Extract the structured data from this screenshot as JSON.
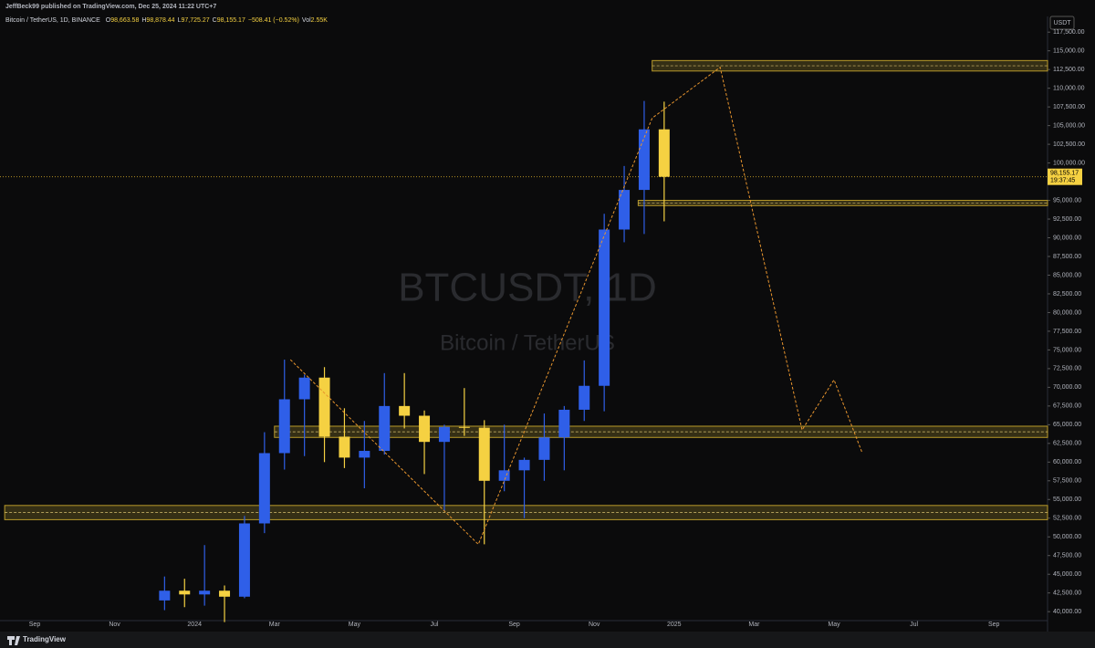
{
  "header": {
    "publisher": "JeffBeck99 published on TradingView.com, Dec 25, 2024 11:22 UTC+7",
    "symbol": "Bitcoin / TetherUS, 1D, BINANCE",
    "ohlc": [
      {
        "key": "O",
        "value": "98,663.58"
      },
      {
        "key": "H",
        "value": "98,878.44"
      },
      {
        "key": "L",
        "value": "97,725.27"
      },
      {
        "key": "C",
        "value": "98,155.17"
      },
      {
        "key": "",
        "value": "−508.41 (−0.52%)"
      },
      {
        "key": "Vol",
        "value": "2.55K"
      }
    ],
    "currency": "USDT",
    "watermark": "BTCUSDT, 1D",
    "watermark_sub": "Bitcoin / TetherUS",
    "brand": "TradingView"
  },
  "chart_data": {
    "type": "candlestick",
    "categories": [
      "Sep",
      null,
      null,
      null,
      "Nov",
      null,
      null,
      null,
      "2024",
      null,
      null,
      null,
      "Mar",
      null,
      null,
      null,
      "May",
      null,
      null,
      null,
      "Jul",
      null,
      null,
      null,
      "Sep",
      null,
      null,
      null,
      "Nov",
      null,
      null,
      null,
      "2025",
      null,
      null,
      null,
      "Mar",
      null,
      null,
      null,
      "May",
      null,
      null,
      null,
      "Jul",
      null,
      null,
      null,
      "Sep"
    ],
    "open": [
      null,
      null,
      null,
      null,
      null,
      null,
      41500,
      42800,
      42300,
      42800,
      42000,
      51800,
      61200,
      68400,
      71300,
      63400,
      60600,
      61500,
      67500,
      66200,
      62700,
      64700,
      64600,
      57500,
      58900,
      60300,
      63300,
      67000,
      70200,
      91100,
      96400,
      104500,
      null,
      null,
      null,
      null,
      null,
      null,
      null,
      null,
      null,
      null,
      null,
      null,
      null,
      null,
      null,
      null,
      null
    ],
    "high": [
      null,
      null,
      null,
      null,
      null,
      null,
      44700,
      44400,
      48900,
      43500,
      52800,
      64000,
      73700,
      71700,
      72700,
      67200,
      65500,
      71900,
      71900,
      66900,
      65000,
      69900,
      65600,
      65000,
      60600,
      66500,
      67500,
      73600,
      93200,
      99600,
      108300,
      108200,
      null,
      null,
      null,
      null,
      null,
      null,
      null,
      null,
      null,
      null,
      null,
      null,
      null,
      null,
      null,
      null,
      null
    ],
    "low": [
      null,
      null,
      null,
      null,
      null,
      null,
      40200,
      40600,
      40800,
      38600,
      41800,
      50500,
      59000,
      60800,
      60000,
      59200,
      56500,
      61000,
      64500,
      58400,
      53500,
      63500,
      49000,
      56100,
      52500,
      57500,
      58900,
      65500,
      66800,
      89400,
      90500,
      92200,
      null,
      null,
      null,
      null,
      null,
      null,
      null,
      null,
      null,
      null,
      null,
      null,
      null,
      null,
      null,
      null,
      null
    ],
    "close": [
      null,
      null,
      null,
      null,
      null,
      null,
      42800,
      42300,
      42800,
      42000,
      51800,
      61200,
      68400,
      71300,
      63400,
      60600,
      61500,
      67500,
      66200,
      62700,
      64700,
      64600,
      57500,
      58900,
      60300,
      63300,
      67000,
      70200,
      91100,
      96400,
      104500,
      98155.17,
      null,
      null,
      null,
      null,
      null,
      null,
      null,
      null,
      null,
      null,
      null,
      null,
      null,
      null,
      null,
      null,
      null
    ],
    "up_color": "#2f5fe8",
    "down_color": "#f5d142",
    "zones": [
      {
        "x0": 30.9,
        "low": 112300,
        "high": 113700
      },
      {
        "x0": 30.2,
        "low": 94300,
        "high": 95000
      },
      {
        "x0": 12,
        "low": 63300,
        "high": 64800
      },
      {
        "x0": -1.5,
        "low": 52300,
        "high": 54200
      }
    ],
    "projection": {
      "x": [
        12.8,
        22.2,
        30.9,
        34.3,
        38.4,
        40.0,
        41.4
      ],
      "values": [
        73700,
        49000,
        106000,
        112800,
        64300,
        71000,
        61300
      ],
      "color": "#e8952e"
    },
    "last_price": {
      "value": 98155.17,
      "label": "98,155.17"
    },
    "countdown": "19:37:45",
    "ylim": [
      38800,
      119600
    ],
    "yticks": [
      {
        "value": 40000,
        "label": "40,000.00"
      },
      {
        "value": 42500,
        "label": "42,500.00"
      },
      {
        "value": 45000,
        "label": "45,000.00"
      },
      {
        "value": 47500,
        "label": "47,500.00"
      },
      {
        "value": 50000,
        "label": "50,000.00"
      },
      {
        "value": 52500,
        "label": "52,500.00"
      },
      {
        "value": 55000,
        "label": "55,000.00"
      },
      {
        "value": 57500,
        "label": "57,500.00"
      },
      {
        "value": 60000,
        "label": "60,000.00"
      },
      {
        "value": 62500,
        "label": "62,500.00"
      },
      {
        "value": 65000,
        "label": "65,000.00"
      },
      {
        "value": 67500,
        "label": "67,500.00"
      },
      {
        "value": 70000,
        "label": "70,000.00"
      },
      {
        "value": 72500,
        "label": "72,500.00"
      },
      {
        "value": 75000,
        "label": "75,000.00"
      },
      {
        "value": 77500,
        "label": "77,500.00"
      },
      {
        "value": 80000,
        "label": "80,000.00"
      },
      {
        "value": 82500,
        "label": "82,500.00"
      },
      {
        "value": 85000,
        "label": "85,000.00"
      },
      {
        "value": 87500,
        "label": "87,500.00"
      },
      {
        "value": 90000,
        "label": "90,000.00"
      },
      {
        "value": 92500,
        "label": "92,500.00"
      },
      {
        "value": 95000,
        "label": "95,000.00"
      },
      {
        "value": 97500,
        "label": "97,500.00"
      },
      {
        "value": 100000,
        "label": "100,000.00"
      },
      {
        "value": 102500,
        "label": "102,500.00"
      },
      {
        "value": 105000,
        "label": "105,000.00"
      },
      {
        "value": 107500,
        "label": "107,500.00"
      },
      {
        "value": 110000,
        "label": "110,000.00"
      },
      {
        "value": 112500,
        "label": "112,500.00"
      },
      {
        "value": 115000,
        "label": "115,000.00"
      },
      {
        "value": 117500,
        "label": "117,500.00"
      }
    ]
  }
}
